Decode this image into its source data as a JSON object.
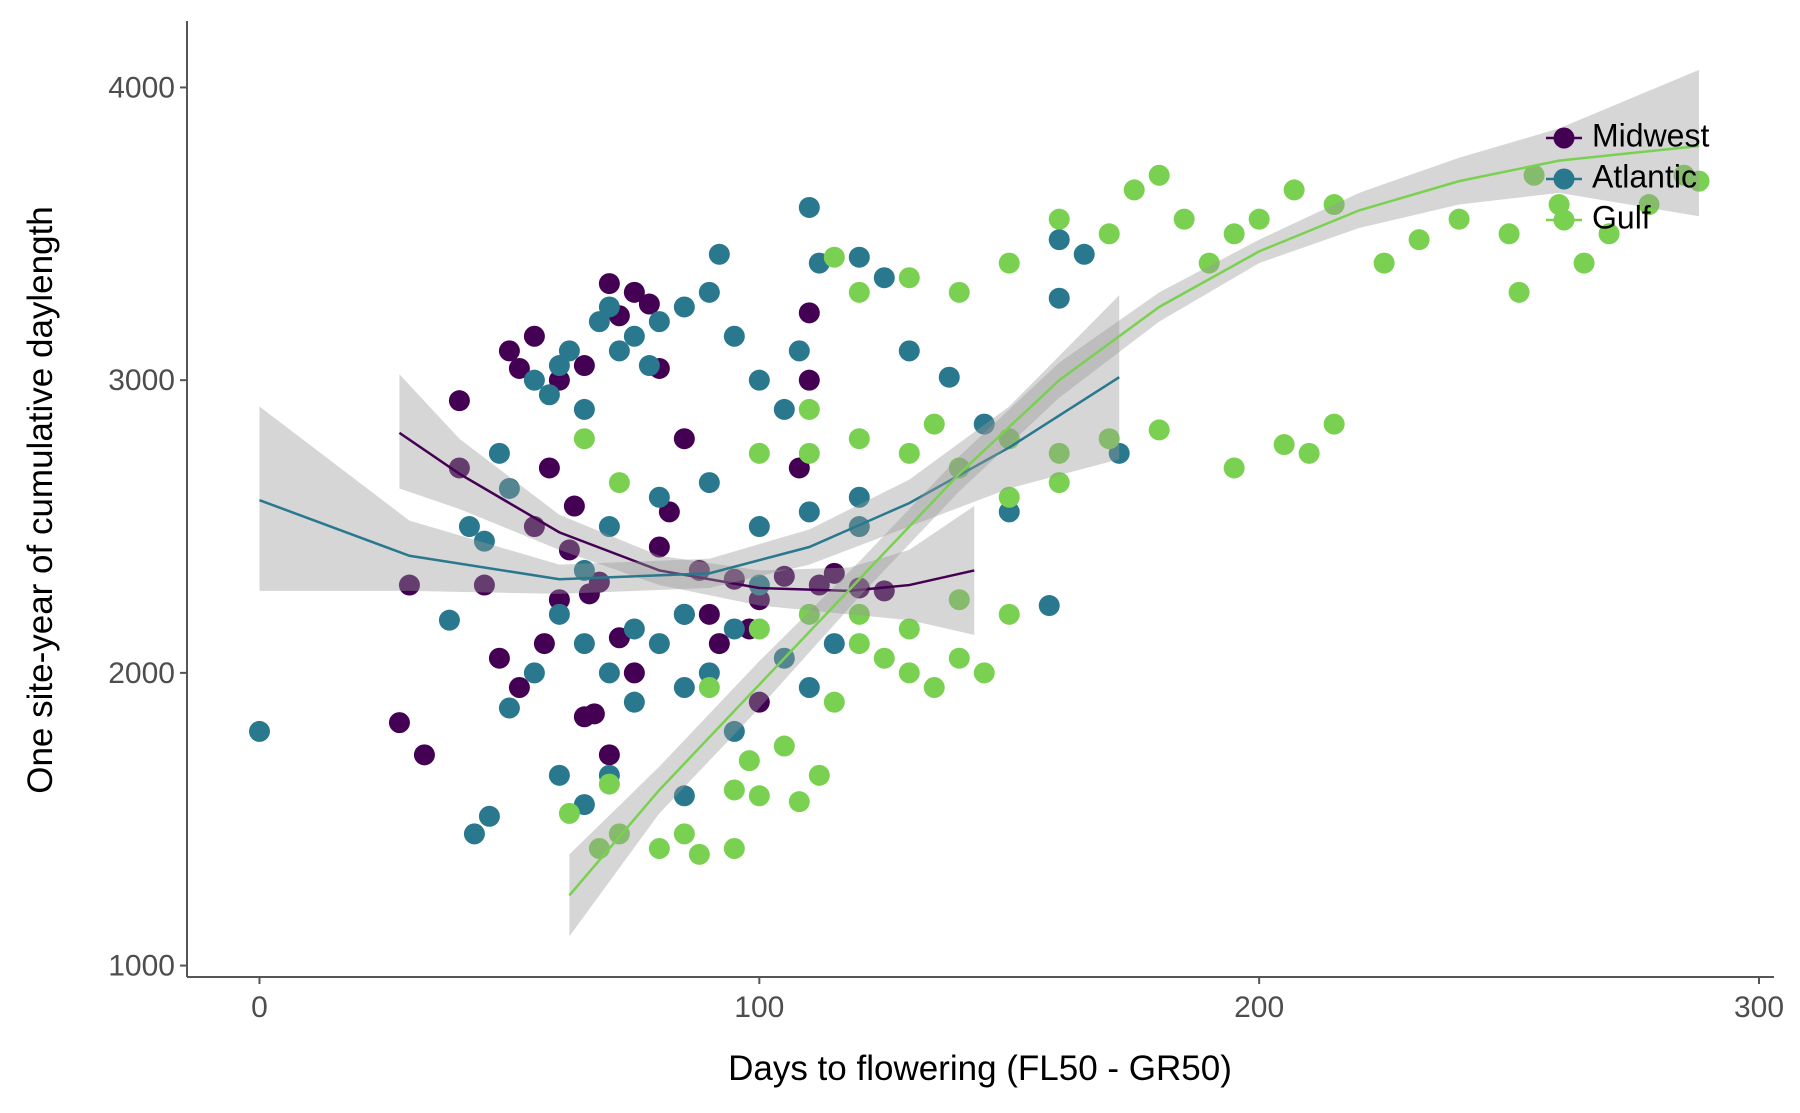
{
  "chart_data": {
    "type": "scatter",
    "x_label": "Days to flowering (FL50 - GR50)",
    "y_label": "One site-year of cumulative daylength",
    "xlim": [
      -14.5,
      303
    ],
    "ylim": [
      961,
      4227
    ],
    "xticks": [
      0,
      100,
      200,
      300
    ],
    "yticks": [
      1000,
      2000,
      3000,
      4000
    ],
    "grid": false,
    "legend": "top-right",
    "series": [
      {
        "name": "Midwest",
        "color": "#440154",
        "x": [
          28,
          33,
          30,
          40,
          45,
          50,
          52,
          55,
          58,
          60,
          62,
          63,
          65,
          68,
          70,
          72,
          75,
          78,
          80,
          82,
          85,
          88,
          90,
          92,
          95,
          98,
          100,
          105,
          108,
          110,
          112,
          115,
          120,
          55,
          60,
          65,
          70,
          48,
          52,
          57,
          75,
          80,
          85,
          100,
          40,
          66,
          72,
          110,
          125,
          67
        ],
        "y": [
          1830,
          1720,
          2300,
          2930,
          2300,
          3100,
          3040,
          3150,
          2700,
          3000,
          2420,
          2570,
          3050,
          2310,
          3330,
          3220,
          3300,
          3260,
          3040,
          2550,
          2800,
          2350,
          2200,
          2100,
          2320,
          2150,
          2250,
          2330,
          2700,
          3230,
          2300,
          2340,
          2290,
          2500,
          2250,
          1850,
          1720,
          2050,
          1950,
          2100,
          2000,
          2430,
          2200,
          1900,
          2700,
          2270,
          2120,
          3000,
          2280,
          1860
        ],
        "smooth": {
          "x": [
            28,
            40,
            60,
            80,
            100,
            118,
            130,
            143
          ],
          "y": [
            2820,
            2680,
            2480,
            2350,
            2290,
            2280,
            2300,
            2350
          ],
          "lower": [
            2630,
            2560,
            2420,
            2300,
            2230,
            2200,
            2180,
            2130
          ],
          "upper": [
            3020,
            2800,
            2540,
            2400,
            2350,
            2360,
            2420,
            2570
          ]
        }
      },
      {
        "name": "Atlantic",
        "color": "#2a788e",
        "x": [
          0,
          43,
          46,
          38,
          42,
          45,
          48,
          50,
          55,
          58,
          60,
          62,
          65,
          68,
          70,
          72,
          75,
          78,
          80,
          85,
          90,
          92,
          95,
          100,
          105,
          108,
          110,
          112,
          120,
          125,
          130,
          138,
          145,
          160,
          165,
          160,
          172,
          158,
          150,
          60,
          65,
          70,
          75,
          80,
          85,
          90,
          95,
          100,
          105,
          110,
          115,
          120,
          70,
          80,
          90,
          100,
          110,
          65,
          55,
          60,
          70,
          85,
          95,
          120,
          50,
          75,
          85,
          65
        ],
        "y": [
          1800,
          1450,
          1510,
          2180,
          2500,
          2450,
          2750,
          2630,
          3000,
          2950,
          3050,
          3100,
          2900,
          3200,
          3250,
          3100,
          3150,
          3050,
          3200,
          3250,
          3300,
          3430,
          3150,
          3000,
          2900,
          3100,
          3590,
          3400,
          3420,
          3350,
          3100,
          3010,
          2850,
          3480,
          3430,
          3280,
          2750,
          2230,
          2550,
          2200,
          2100,
          2000,
          1900,
          2100,
          2200,
          2000,
          2150,
          2300,
          2050,
          1950,
          2100,
          2500,
          2500,
          2600,
          2650,
          2500,
          2550,
          2350,
          2000,
          1650,
          1650,
          1580,
          1800,
          2600,
          1880,
          2150,
          1950,
          1550
        ],
        "smooth": {
          "x": [
            0,
            30,
            60,
            90,
            110,
            130,
            150,
            172
          ],
          "y": [
            2590,
            2400,
            2320,
            2340,
            2430,
            2580,
            2770,
            3010
          ],
          "lower": [
            2280,
            2280,
            2270,
            2290,
            2370,
            2500,
            2630,
            2730
          ],
          "upper": [
            2910,
            2520,
            2370,
            2390,
            2490,
            2660,
            2910,
            3290
          ]
        }
      },
      {
        "name": "Gulf",
        "color": "#7ad151",
        "x": [
          62,
          68,
          70,
          72,
          80,
          85,
          88,
          95,
          65,
          72,
          90,
          95,
          98,
          100,
          105,
          108,
          112,
          115,
          120,
          125,
          130,
          135,
          140,
          145,
          100,
          110,
          120,
          130,
          140,
          150,
          120,
          130,
          140,
          150,
          160,
          170,
          180,
          195,
          205,
          210,
          215,
          150,
          160,
          120,
          130,
          140,
          150,
          160,
          170,
          175,
          180,
          185,
          190,
          195,
          200,
          207,
          215,
          225,
          232,
          240,
          250,
          252,
          255,
          260,
          265,
          270,
          278,
          285,
          288,
          110,
          135,
          100,
          110,
          115
        ],
        "y": [
          1520,
          1400,
          1620,
          1450,
          1400,
          1450,
          1380,
          1400,
          2800,
          2650,
          1950,
          1600,
          1700,
          1580,
          1750,
          1560,
          1650,
          1900,
          2100,
          2050,
          2000,
          1950,
          2050,
          2000,
          2150,
          2200,
          2200,
          2150,
          2250,
          2200,
          2800,
          2750,
          2700,
          2800,
          2750,
          2800,
          2830,
          2700,
          2780,
          2750,
          2850,
          2600,
          2650,
          3300,
          3350,
          3300,
          3400,
          3550,
          3500,
          3650,
          3700,
          3550,
          3400,
          3500,
          3550,
          3650,
          3600,
          3400,
          3480,
          3550,
          3500,
          3300,
          3700,
          3600,
          3400,
          3500,
          3600,
          3700,
          3680,
          2900,
          2850,
          2750,
          2750,
          3420
        ],
        "smooth": {
          "x": [
            62,
            80,
            100,
            120,
            140,
            160,
            180,
            200,
            220,
            240,
            260,
            288
          ],
          "y": [
            1240,
            1600,
            1960,
            2320,
            2680,
            3000,
            3250,
            3440,
            3580,
            3680,
            3750,
            3800
          ],
          "lower": [
            1100,
            1520,
            1880,
            2260,
            2620,
            2940,
            3200,
            3400,
            3520,
            3600,
            3640,
            3560
          ],
          "upper": [
            1380,
            1680,
            2040,
            2380,
            2740,
            3060,
            3300,
            3480,
            3640,
            3760,
            3860,
            4060
          ]
        }
      }
    ]
  }
}
